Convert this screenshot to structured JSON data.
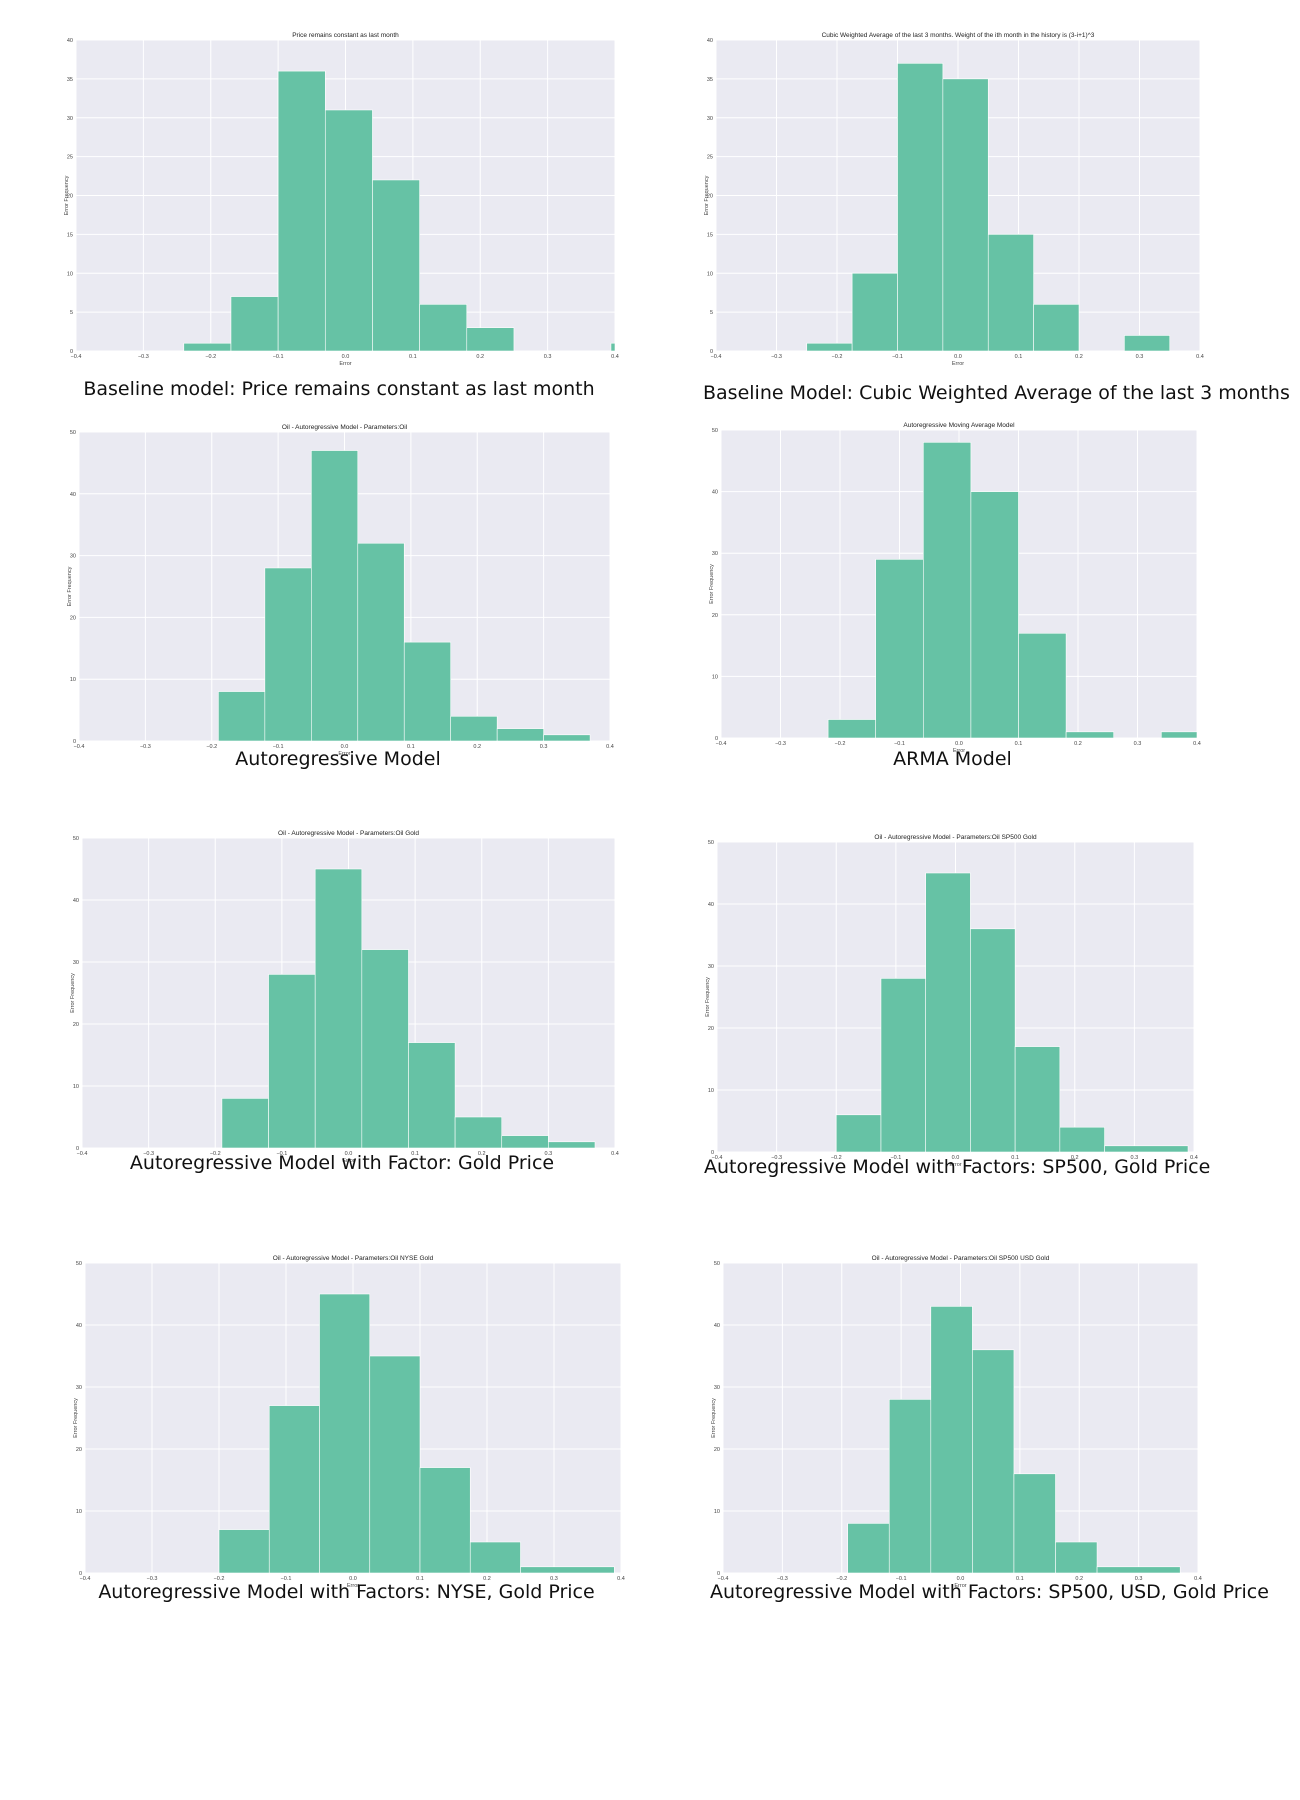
{
  "chart_data": [
    {
      "type": "bar",
      "title": "Price remains constant as last month",
      "caption": "Baseline model: Price remains constant as last month",
      "xlabel": "Error",
      "ylabel": "Error Frequency",
      "xlim": [
        -0.4,
        0.4
      ],
      "ylim": [
        0,
        40
      ],
      "xticks": [
        -0.4,
        -0.3,
        -0.2,
        -0.1,
        0.0,
        0.1,
        0.2,
        0.3,
        0.4
      ],
      "yticks": [
        0,
        5,
        10,
        15,
        20,
        25,
        30,
        35,
        40
      ],
      "bins": [
        [
          -0.24,
          -0.17,
          1
        ],
        [
          -0.17,
          -0.1,
          7
        ],
        [
          -0.1,
          -0.03,
          36
        ],
        [
          -0.03,
          0.04,
          31
        ],
        [
          0.04,
          0.11,
          22
        ],
        [
          0.11,
          0.18,
          6
        ],
        [
          0.18,
          0.25,
          3
        ],
        [
          0.394,
          0.4,
          1
        ]
      ],
      "color": "#66c2a5",
      "grid": true
    },
    {
      "type": "bar",
      "title": "Cubic Weighted Average of the last 3 months. Weight of the ith month in the history is (3-i+1)^3",
      "caption": "Baseline Model: Cubic Weighted Average of the last 3 months",
      "xlabel": "Error",
      "ylabel": "Error Frequency",
      "xlim": [
        -0.4,
        0.4
      ],
      "ylim": [
        0,
        40
      ],
      "xticks": [
        -0.4,
        -0.3,
        -0.2,
        -0.1,
        0.0,
        0.1,
        0.2,
        0.3,
        0.4
      ],
      "yticks": [
        0,
        5,
        10,
        15,
        20,
        25,
        30,
        35,
        40
      ],
      "bins": [
        [
          -0.25,
          -0.175,
          1
        ],
        [
          -0.175,
          -0.1,
          10
        ],
        [
          -0.1,
          -0.025,
          37
        ],
        [
          -0.025,
          0.05,
          35
        ],
        [
          0.05,
          0.125,
          15
        ],
        [
          0.125,
          0.2,
          6
        ],
        [
          0.2,
          0.275,
          0
        ],
        [
          0.275,
          0.35,
          2
        ]
      ],
      "color": "#66c2a5",
      "grid": true
    },
    {
      "type": "bar",
      "title": "Oil - Autoregressive Model - Parameters:Oil",
      "caption": "Autoregressive Model",
      "xlabel": "Error",
      "ylabel": "Error Frequency",
      "xlim": [
        -0.4,
        0.4
      ],
      "ylim": [
        0,
        50
      ],
      "xticks": [
        -0.4,
        -0.3,
        -0.2,
        -0.1,
        0.0,
        0.1,
        0.2,
        0.3,
        0.4
      ],
      "yticks": [
        0,
        10,
        20,
        30,
        40,
        50
      ],
      "bins": [
        [
          -0.19,
          -0.12,
          8
        ],
        [
          -0.12,
          -0.05,
          28
        ],
        [
          -0.05,
          0.02,
          47
        ],
        [
          0.02,
          0.09,
          32
        ],
        [
          0.09,
          0.16,
          16
        ],
        [
          0.16,
          0.23,
          4
        ],
        [
          0.23,
          0.3,
          2
        ],
        [
          0.3,
          0.37,
          1
        ]
      ],
      "color": "#66c2a5",
      "grid": true
    },
    {
      "type": "bar",
      "title": "Autoregressive Moving Average Model",
      "caption": "ARMA Model",
      "xlabel": "Error",
      "ylabel": "Error Frequency",
      "xlim": [
        -0.4,
        0.4
      ],
      "ylim": [
        0,
        50
      ],
      "xticks": [
        -0.4,
        -0.3,
        -0.2,
        -0.1,
        0.0,
        0.1,
        0.2,
        0.3,
        0.4
      ],
      "yticks": [
        0,
        10,
        20,
        30,
        40,
        50
      ],
      "bins": [
        [
          -0.22,
          -0.14,
          3
        ],
        [
          -0.14,
          -0.06,
          29
        ],
        [
          -0.06,
          0.02,
          48
        ],
        [
          0.02,
          0.1,
          40
        ],
        [
          0.1,
          0.18,
          17
        ],
        [
          0.18,
          0.26,
          1
        ],
        [
          0.26,
          0.34,
          0
        ],
        [
          0.34,
          0.42,
          1
        ]
      ],
      "color": "#66c2a5",
      "grid": true
    },
    {
      "type": "bar",
      "title": "Oil - Autoregressive Model - Parameters:Oil Gold",
      "caption": "Autoregressive Model with Factor: Gold Price",
      "xlabel": "Error",
      "ylabel": "Error Frequency",
      "xlim": [
        -0.4,
        0.4
      ],
      "ylim": [
        0,
        50
      ],
      "xticks": [
        -0.4,
        -0.3,
        -0.2,
        -0.1,
        0.0,
        0.1,
        0.2,
        0.3,
        0.4
      ],
      "yticks": [
        0,
        10,
        20,
        30,
        40,
        50
      ],
      "bins": [
        [
          -0.19,
          -0.12,
          8
        ],
        [
          -0.12,
          -0.05,
          28
        ],
        [
          -0.05,
          0.02,
          45
        ],
        [
          0.02,
          0.09,
          32
        ],
        [
          0.09,
          0.16,
          17
        ],
        [
          0.16,
          0.23,
          5
        ],
        [
          0.23,
          0.3,
          2
        ],
        [
          0.3,
          0.37,
          1
        ]
      ],
      "color": "#66c2a5",
      "grid": true
    },
    {
      "type": "bar",
      "title": "Oil - Autoregressive Model - Parameters:Oil SP500 Gold",
      "caption": "Autoregressive Model with Factors: SP500, Gold Price",
      "xlabel": "Error",
      "ylabel": "Error Frequency",
      "xlim": [
        -0.4,
        0.4
      ],
      "ylim": [
        0,
        50
      ],
      "xticks": [
        -0.4,
        -0.3,
        -0.2,
        -0.1,
        0.0,
        0.1,
        0.2,
        0.3,
        0.4
      ],
      "yticks": [
        0,
        10,
        20,
        30,
        40,
        50
      ],
      "bins": [
        [
          -0.2,
          -0.125,
          6
        ],
        [
          -0.125,
          -0.05,
          28
        ],
        [
          -0.05,
          0.025,
          45
        ],
        [
          0.025,
          0.1,
          36
        ],
        [
          0.1,
          0.175,
          17
        ],
        [
          0.175,
          0.25,
          4
        ],
        [
          0.25,
          0.39,
          1
        ]
      ],
      "color": "#66c2a5",
      "grid": true
    },
    {
      "type": "bar",
      "title": "Oil - Autoregressive Model - Parameters:Oil NYSE Gold",
      "caption": "Autoregressive Model with Factors: NYSE, Gold Price",
      "xlabel": "Error",
      "ylabel": "Error Frequency",
      "xlim": [
        -0.4,
        0.4
      ],
      "ylim": [
        0,
        50
      ],
      "xticks": [
        -0.4,
        -0.3,
        -0.2,
        -0.1,
        0.0,
        0.1,
        0.2,
        0.3,
        0.4
      ],
      "yticks": [
        0,
        10,
        20,
        30,
        40,
        50
      ],
      "bins": [
        [
          -0.2,
          -0.125,
          7
        ],
        [
          -0.125,
          -0.05,
          27
        ],
        [
          -0.05,
          0.025,
          45
        ],
        [
          0.025,
          0.1,
          35
        ],
        [
          0.1,
          0.175,
          17
        ],
        [
          0.175,
          0.25,
          5
        ],
        [
          0.25,
          0.39,
          1
        ]
      ],
      "color": "#66c2a5",
      "grid": true
    },
    {
      "type": "bar",
      "title": "Oil - Autoregressive Model - Parameters:Oil SP500 USD Gold",
      "caption": "Autoregressive Model with Factors: SP500, USD, Gold Price",
      "xlabel": "Error",
      "ylabel": "Error Frequency",
      "xlim": [
        -0.4,
        0.4
      ],
      "ylim": [
        0,
        50
      ],
      "xticks": [
        -0.4,
        -0.3,
        -0.2,
        -0.1,
        0.0,
        0.1,
        0.2,
        0.3,
        0.4
      ],
      "yticks": [
        0,
        10,
        20,
        30,
        40,
        50
      ],
      "bins": [
        [
          -0.19,
          -0.12,
          8
        ],
        [
          -0.12,
          -0.05,
          28
        ],
        [
          -0.05,
          0.02,
          43
        ],
        [
          0.02,
          0.09,
          36
        ],
        [
          0.09,
          0.16,
          16
        ],
        [
          0.16,
          0.23,
          5
        ],
        [
          0.23,
          0.37,
          1
        ]
      ],
      "color": "#66c2a5",
      "grid": true
    }
  ]
}
